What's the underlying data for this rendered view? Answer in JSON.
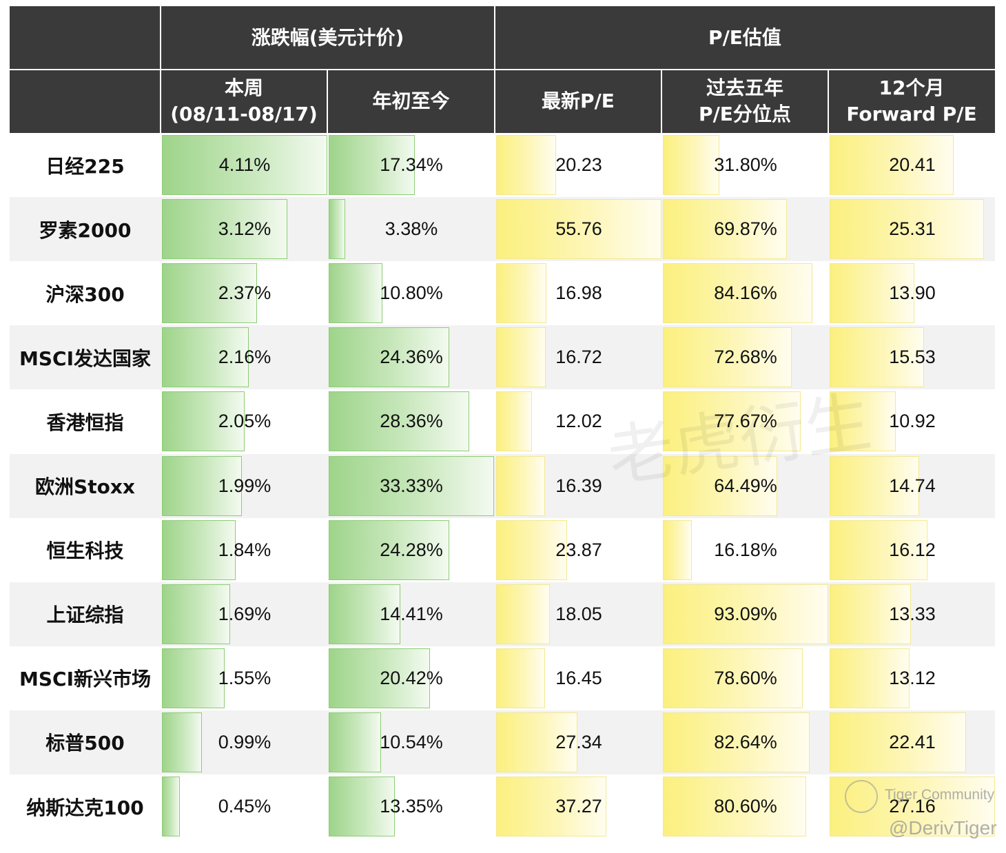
{
  "header": {
    "group_change": "涨跌幅(美元计价)",
    "group_pe": "P/E估值",
    "col_week_line1": "本周",
    "col_week_line2": "(08/11-08/17)",
    "col_ytd": "年初至今",
    "col_latest_pe": "最新P/E",
    "col_pct_line1": "过去五年",
    "col_pct_line2": "P/E分位点",
    "col_fwd_line1": "12个月",
    "col_fwd_line2": "Forward P/E"
  },
  "chart_data": {
    "type": "table",
    "columns": [
      "本周(08/11-08/17)",
      "年初至今",
      "最新P/E",
      "过去五年P/E分位点",
      "12个月Forward P/E"
    ],
    "column_max": [
      4.11,
      33.33,
      55.76,
      93.09,
      27.16
    ],
    "rows": [
      {
        "name": "日经225",
        "values": [
          4.11,
          17.34,
          20.23,
          31.8,
          20.41
        ],
        "text": [
          "4.11%",
          "17.34%",
          "20.23",
          "31.80%",
          "20.41"
        ]
      },
      {
        "name": "罗素2000",
        "values": [
          3.12,
          3.38,
          55.76,
          69.87,
          25.31
        ],
        "text": [
          "3.12%",
          "3.38%",
          "55.76",
          "69.87%",
          "25.31"
        ]
      },
      {
        "name": "沪深300",
        "values": [
          2.37,
          10.8,
          16.98,
          84.16,
          13.9
        ],
        "text": [
          "2.37%",
          "10.80%",
          "16.98",
          "84.16%",
          "13.90"
        ]
      },
      {
        "name": "MSCI发达国家",
        "values": [
          2.16,
          24.36,
          16.72,
          72.68,
          15.53
        ],
        "text": [
          "2.16%",
          "24.36%",
          "16.72",
          "72.68%",
          "15.53"
        ]
      },
      {
        "name": "香港恒指",
        "values": [
          2.05,
          28.36,
          12.02,
          77.67,
          10.92
        ],
        "text": [
          "2.05%",
          "28.36%",
          "12.02",
          "77.67%",
          "10.92"
        ]
      },
      {
        "name": "欧洲Stoxx",
        "values": [
          1.99,
          33.33,
          16.39,
          64.49,
          14.74
        ],
        "text": [
          "1.99%",
          "33.33%",
          "16.39",
          "64.49%",
          "14.74"
        ]
      },
      {
        "name": "恒生科技",
        "values": [
          1.84,
          24.28,
          23.87,
          16.18,
          16.12
        ],
        "text": [
          "1.84%",
          "24.28%",
          "23.87",
          "16.18%",
          "16.12"
        ]
      },
      {
        "name": "上证综指",
        "values": [
          1.69,
          14.41,
          18.05,
          93.09,
          13.33
        ],
        "text": [
          "1.69%",
          "14.41%",
          "18.05",
          "93.09%",
          "13.33"
        ]
      },
      {
        "name": "MSCI新兴市场",
        "values": [
          1.55,
          20.42,
          16.45,
          78.6,
          13.12
        ],
        "text": [
          "1.55%",
          "20.42%",
          "16.45",
          "78.60%",
          "13.12"
        ]
      },
      {
        "name": "标普500",
        "values": [
          0.99,
          10.54,
          27.34,
          82.64,
          22.41
        ],
        "text": [
          "0.99%",
          "10.54%",
          "27.34",
          "82.64%",
          "22.41"
        ]
      },
      {
        "name": "纳斯达克100",
        "values": [
          0.45,
          13.35,
          37.27,
          80.6,
          27.16
        ],
        "text": [
          "0.45%",
          "13.35%",
          "37.27",
          "80.60%",
          "27.16"
        ]
      }
    ]
  },
  "colors": {
    "header_bg": "#3a3a3a",
    "header_text": "#ffffff",
    "stripe_bg": "#f2f2f2",
    "green_bar": "#9ed48a",
    "yellow_bar": "#fbf07e"
  },
  "watermark": {
    "main_text": "老虎衍生",
    "community_text": "Tiger Community",
    "handle_text": "@DerivTiger"
  }
}
